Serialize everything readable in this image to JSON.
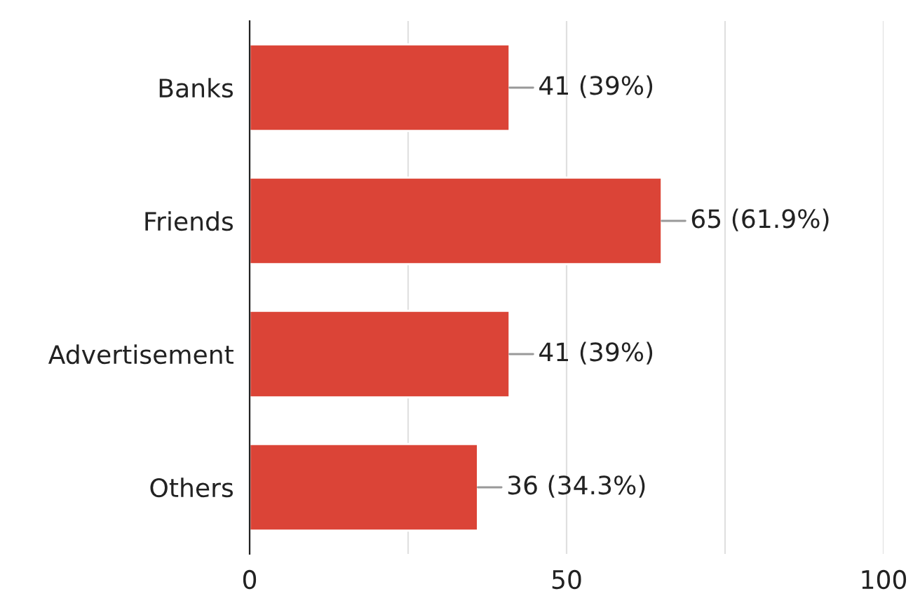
{
  "chart_data": {
    "type": "bar",
    "orientation": "horizontal",
    "categories": [
      "Banks",
      "Friends",
      "Advertisement",
      "Others"
    ],
    "values": [
      41,
      65,
      41,
      36
    ],
    "color": "#db4437",
    "value_labels": [
      "41 (39%)",
      "65 (61.9%)",
      "41 (39%)",
      "36 (34.3%)"
    ],
    "xlim": [
      0,
      100
    ],
    "xticks": [
      0,
      {
        "value": 25,
        "label": null
      },
      50,
      {
        "value": 75,
        "label": null
      },
      100
    ],
    "grid": "x",
    "legend": false
  }
}
